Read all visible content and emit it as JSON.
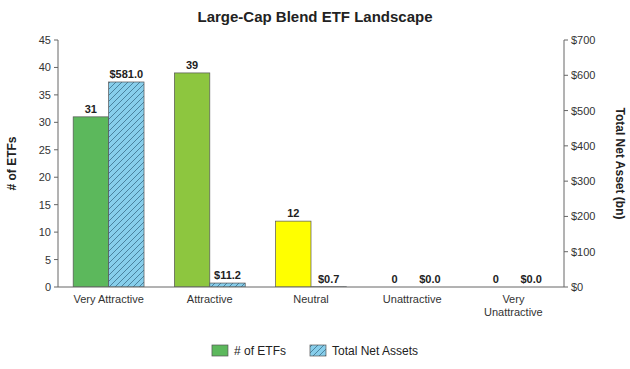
{
  "chart_data": {
    "type": "bar",
    "title": "Large-Cap Blend ETF Landscape",
    "categories": [
      "Very Attractive",
      "Attractive",
      "Neutral",
      "Unattractive",
      "Very\nUnattractive"
    ],
    "series": [
      {
        "name": "# of ETFs",
        "colors": [
          "#5cb85c",
          "#8dc63f",
          "#ffff00",
          "#d3d3d3",
          "#a9a9a9"
        ],
        "values": [
          31,
          39,
          12,
          0,
          0
        ]
      },
      {
        "name": "Total Net Assets",
        "color": "#87ceeb",
        "axis": "y2",
        "values": [
          581.0,
          11.2,
          0.7,
          0.0,
          0.0
        ],
        "value_labels": [
          "$581.0",
          "$11.2",
          "$0.7",
          "$0.0",
          "$0.0"
        ]
      }
    ],
    "ylabel": "# of ETFs",
    "y2label": "Total Net Asset (bn)",
    "ylim": [
      0,
      45
    ],
    "yticks": [
      0,
      5,
      10,
      15,
      20,
      25,
      30,
      35,
      40,
      45
    ],
    "y2lim": [
      0,
      700
    ],
    "y2ticks": [
      {
        "value": 0,
        "label": "$0"
      },
      {
        "value": 100,
        "label": "$100"
      },
      {
        "value": 200,
        "label": "$200"
      },
      {
        "value": 300,
        "label": "$300"
      },
      {
        "value": 400,
        "label": "$400"
      },
      {
        "value": 500,
        "label": "$500"
      },
      {
        "value": 600,
        "label": "$600"
      },
      {
        "value": 700,
        "label": "$700"
      }
    ],
    "data_labels": true,
    "grid": false,
    "legend": "bottom"
  }
}
